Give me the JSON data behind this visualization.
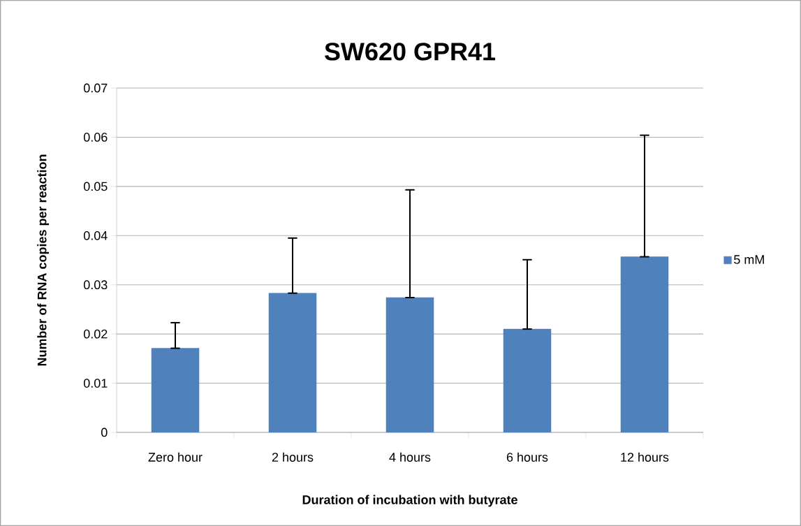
{
  "chart_data": {
    "type": "bar",
    "title": "SW620 GPR41",
    "xlabel": "Duration of incubation with butyrate",
    "ylabel": "Number of RNA copies per reaction",
    "categories": [
      "Zero hour",
      "2 hours",
      "4 hours",
      "6 hours",
      "12 hours"
    ],
    "series": [
      {
        "name": "5 mM",
        "color": "#4f81bd",
        "values": [
          0.0171,
          0.0283,
          0.0274,
          0.021,
          0.0357
        ],
        "errors": [
          [
            0.0171,
            0.0223
          ],
          [
            0.0283,
            0.0395
          ],
          [
            0.0274,
            0.0493
          ],
          [
            0.021,
            0.0351
          ],
          [
            0.0357,
            0.0604
          ]
        ]
      }
    ],
    "ylim": [
      0,
      0.07
    ],
    "yticks": [
      0,
      0.01,
      0.02,
      0.03,
      0.04,
      0.05,
      0.06,
      0.07
    ],
    "grid": "y",
    "legend": "right"
  }
}
